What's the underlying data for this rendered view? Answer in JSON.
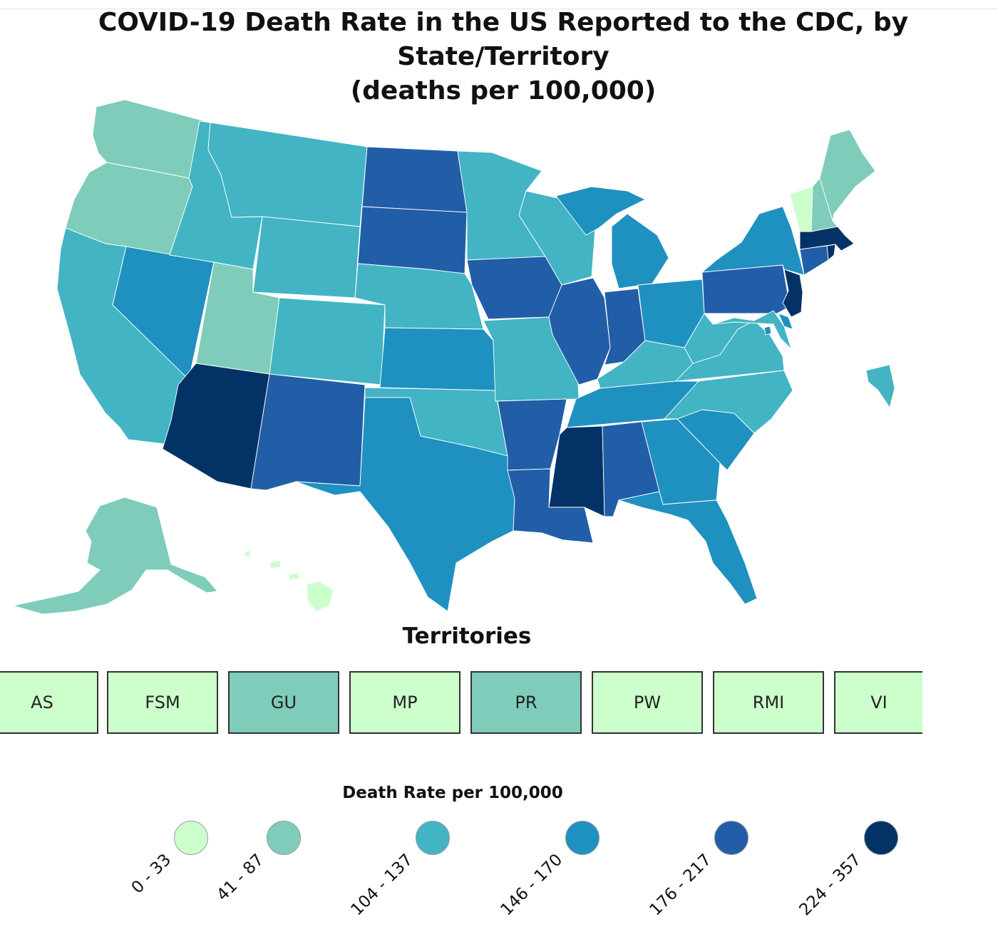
{
  "title_line1": "COVID-19 Death Rate in the US Reported to the CDC, by State/Territory",
  "title_line2": "(deaths per 100,000)",
  "colors": {
    "bin0": "#ccffcc",
    "bin1": "#7fccbb",
    "bin2": "#42b4c4",
    "bin3": "#1f91c0",
    "bin4": "#225ea8",
    "bin5": "#033366"
  },
  "state_bins": {
    "WA": 1,
    "OR": 1,
    "CA": 2,
    "NV": 3,
    "ID": 2,
    "MT": 2,
    "WY": 2,
    "UT": 1,
    "AZ": 5,
    "CO": 2,
    "NM": 4,
    "ND": 4,
    "SD": 4,
    "NE": 2,
    "KS": 3,
    "OK": 2,
    "TX": 3,
    "MN": 2,
    "IA": 4,
    "MO": 2,
    "AR": 4,
    "LA": 4,
    "WI": 2,
    "IL": 4,
    "MS": 5,
    "MI": 3,
    "IN": 4,
    "KY": 2,
    "TN": 3,
    "AL": 4,
    "OH": 3,
    "GA": 3,
    "FL": 3,
    "SC": 3,
    "NC": 2,
    "VA": 2,
    "WV": 2,
    "PA": 4,
    "NY": 3,
    "VT": 0,
    "NH": 1,
    "ME": 1,
    "MA": 5,
    "RI": 5,
    "CT": 4,
    "NJ": 5,
    "DE": 3,
    "MD": 2,
    "DC": 3,
    "AK": 1,
    "HI": 0
  },
  "territories_title": "Territories",
  "territories": [
    {
      "label": "AS",
      "bin": 0
    },
    {
      "label": "FSM",
      "bin": 0
    },
    {
      "label": "GU",
      "bin": 1
    },
    {
      "label": "MP",
      "bin": 0
    },
    {
      "label": "PR",
      "bin": 1
    },
    {
      "label": "PW",
      "bin": 0
    },
    {
      "label": "RMI",
      "bin": 0
    },
    {
      "label": "VI",
      "bin": 0
    }
  ],
  "legend": {
    "title": "Death Rate per 100,000",
    "bins": [
      "0 - 33",
      "41 - 87",
      "104 - 137",
      "146 - 170",
      "176 - 217",
      "224 - 357"
    ]
  }
}
